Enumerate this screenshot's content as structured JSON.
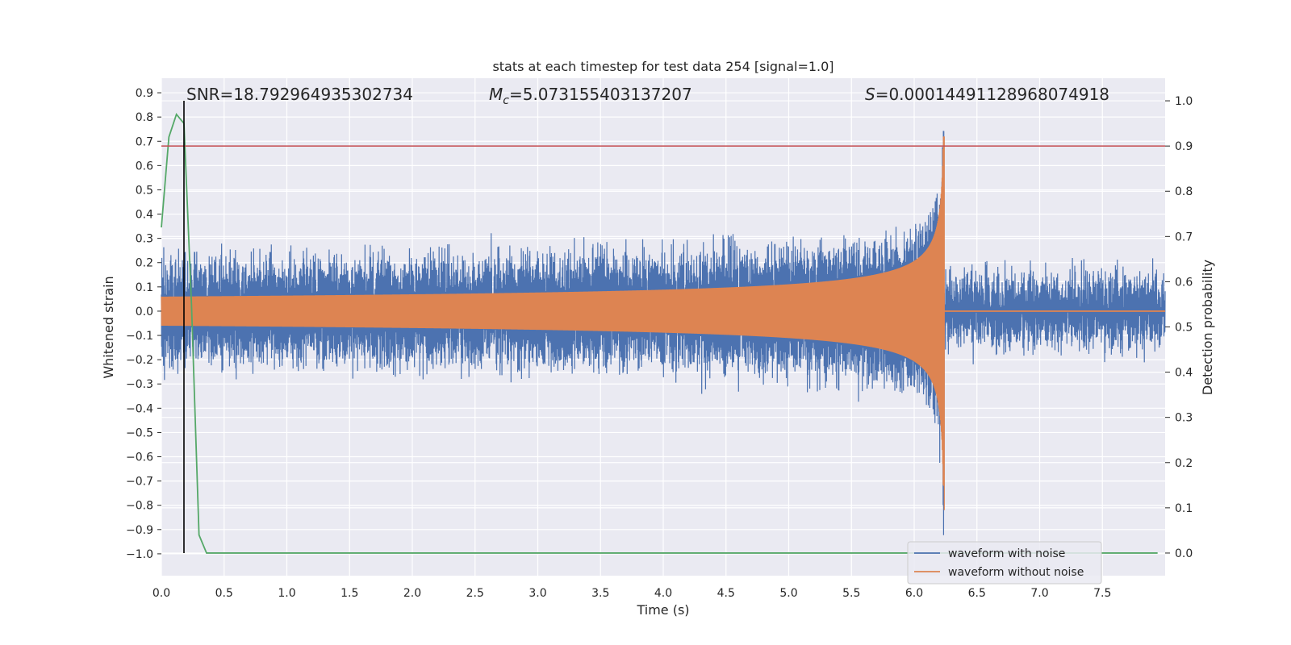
{
  "chart_data": {
    "type": "line",
    "title": "stats at each timestep for test data 254 [signal=1.0]",
    "xlabel": "Time (s)",
    "ylabel_left": "Whitened strain",
    "ylabel_right": "Detection probability",
    "xlim": [
      0.0,
      8.0
    ],
    "ylim_left": [
      -1.09,
      0.96
    ],
    "ylim_right": [
      -0.05,
      1.05
    ],
    "xticks": [
      "0.0",
      "0.5",
      "1.0",
      "1.5",
      "2.0",
      "2.5",
      "3.0",
      "3.5",
      "4.0",
      "4.5",
      "5.0",
      "5.5",
      "6.0",
      "6.5",
      "7.0",
      "7.5"
    ],
    "yticks_left": [
      "0.9",
      "0.8",
      "0.7",
      "0.6",
      "0.5",
      "0.4",
      "0.3",
      "0.2",
      "0.1",
      "0.0",
      "−0.1",
      "−0.2",
      "−0.3",
      "−0.4",
      "−0.5",
      "−0.6",
      "−0.7",
      "−0.8",
      "−0.9",
      "−1.0"
    ],
    "yticks_right": [
      "1.0",
      "0.9",
      "0.8",
      "0.7",
      "0.6",
      "0.5",
      "0.4",
      "0.3",
      "0.2",
      "0.1",
      "0.0"
    ],
    "annotations": {
      "snr": "SNR=18.792964935302734",
      "mc_symbol": "M",
      "mc_sub": "c",
      "mc_value": "=5.073155403137207",
      "s_symbol": "S",
      "s_value": "=0.00014491128968074918"
    },
    "threshold_right": 0.9,
    "marker_time": 0.18,
    "merger_time": 6.24,
    "series": [
      {
        "name": "waveform with noise",
        "color": "#4c72b0",
        "noise_amplitude": 0.27,
        "signal_start_amplitude": 0.06,
        "signal_peak_amplitude": 0.85,
        "end_time": 8.0
      },
      {
        "name": "waveform without noise",
        "color": "#dd8452",
        "start_amplitude": 0.06,
        "peak_amplitude": 0.72,
        "min_amplitude": -0.82,
        "end_time": 6.24
      },
      {
        "name": "detection probability",
        "color": "#55a868",
        "axis": "right",
        "x": [
          0.0,
          0.06,
          0.12,
          0.18,
          0.24,
          0.3,
          0.36,
          0.42,
          8.0
        ],
        "y": [
          0.72,
          0.92,
          0.97,
          0.95,
          0.55,
          0.04,
          0.0,
          0.0,
          0.0
        ]
      }
    ],
    "threshold_color": "#c44e52",
    "marker_color": "#000000"
  },
  "legend": {
    "items": [
      {
        "label": "waveform with noise",
        "color": "#4c72b0"
      },
      {
        "label": "waveform without noise",
        "color": "#dd8452"
      }
    ]
  }
}
